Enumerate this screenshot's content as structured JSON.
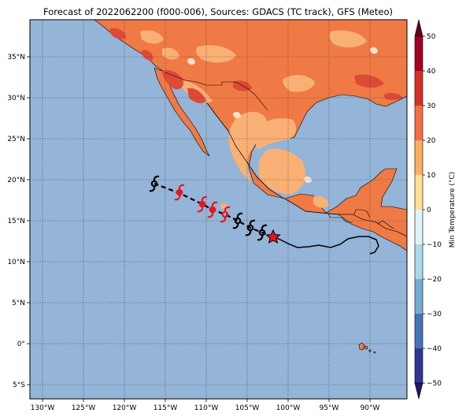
{
  "figure": {
    "title": "Forecast of 2022062200 (f000-006), Sources: GDACS (TC track), GFS (Meteo)"
  },
  "map": {
    "lon_ticks": [
      "130°W",
      "125°W",
      "120°W",
      "115°W",
      "110°W",
      "105°W",
      "100°W",
      "95°W",
      "90°W"
    ],
    "lat_ticks": [
      "35°N",
      "30°N",
      "25°N",
      "20°N",
      "15°N",
      "10°N",
      "5°N",
      "0°",
      "5°S"
    ],
    "ocean_color": "#94b4d8",
    "grid": "dotted"
  },
  "colorbar": {
    "label": "Min Temperature (°C)",
    "ticks": [
      "50",
      "40",
      "30",
      "20",
      "10",
      "0",
      "−10",
      "−20",
      "−30",
      "−40",
      "−50"
    ],
    "colors": [
      "#67001f",
      "#b2182b",
      "#d6604d",
      "#f4a582",
      "#fddbc7",
      "#f7f7f7",
      "#d1e5f0",
      "#92c5de",
      "#4393c3",
      "#2166ac",
      "#053061"
    ],
    "extend": "both"
  },
  "track": {
    "current_position_marker": "red-star",
    "past_symbols": "black hurricane symbols",
    "forecast_symbols": "red hurricane symbols"
  }
}
